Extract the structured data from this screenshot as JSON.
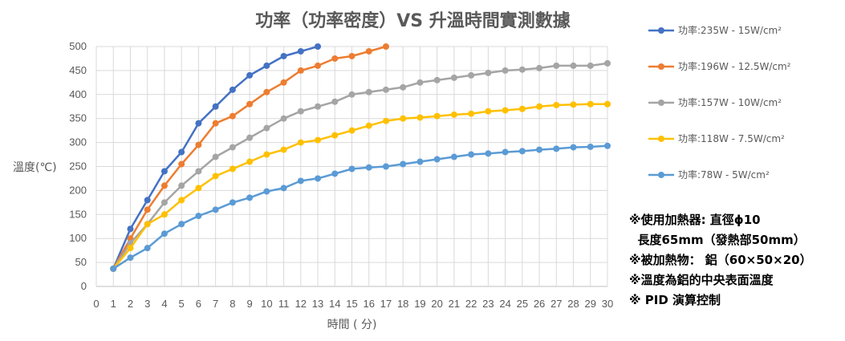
{
  "chart_data": {
    "type": "line",
    "title": "功率（功率密度）VS 升溫時間實測數據",
    "xlabel": "時間 ( 分)",
    "ylabel": "溫度(℃)",
    "xlim": [
      0,
      30
    ],
    "ylim": [
      0,
      500
    ],
    "x_ticks": [
      "0",
      "1",
      "2",
      "3",
      "4",
      "5",
      "6",
      "7",
      "8",
      "9",
      "10",
      "11",
      "12",
      "13",
      "14",
      "15",
      "16",
      "17",
      "18",
      "19",
      "20",
      "21",
      "22",
      "23",
      "24",
      "25",
      "26",
      "27",
      "28",
      "29",
      "30"
    ],
    "y_ticks": [
      "0",
      "50",
      "100",
      "150",
      "200",
      "250",
      "300",
      "350",
      "400",
      "450",
      "500"
    ],
    "grid": true,
    "legend_position": "right",
    "series": [
      {
        "name": "功率:235W - 15W/cm²",
        "color": "#4472C4",
        "x": [
          1,
          2,
          3,
          4,
          5,
          6,
          7,
          8,
          9,
          10,
          11,
          12,
          13
        ],
        "y": [
          37,
          120,
          180,
          240,
          280,
          340,
          375,
          410,
          440,
          460,
          480,
          490,
          500
        ]
      },
      {
        "name": "功率:196W - 12.5W/cm²",
        "color": "#ED7D31",
        "x": [
          1,
          2,
          3,
          4,
          5,
          6,
          7,
          8,
          9,
          10,
          11,
          12,
          13,
          14,
          15,
          16,
          17
        ],
        "y": [
          37,
          100,
          160,
          210,
          255,
          295,
          340,
          355,
          380,
          405,
          425,
          450,
          460,
          475,
          480,
          490,
          500
        ]
      },
      {
        "name": "功率:157W - 10W/cm²",
        "color": "#A5A5A5",
        "x": [
          1,
          2,
          3,
          4,
          5,
          6,
          7,
          8,
          9,
          10,
          11,
          12,
          13,
          14,
          15,
          16,
          17,
          18,
          19,
          20,
          21,
          22,
          23,
          24,
          25,
          26,
          27,
          28,
          29,
          30
        ],
        "y": [
          37,
          90,
          130,
          175,
          210,
          240,
          270,
          290,
          310,
          330,
          350,
          365,
          375,
          385,
          400,
          405,
          410,
          415,
          425,
          430,
          435,
          440,
          445,
          450,
          452,
          455,
          460,
          460,
          460,
          465
        ]
      },
      {
        "name": "功率:118W - 7.5W/cm²",
        "color": "#FFC000",
        "x": [
          1,
          2,
          3,
          4,
          5,
          6,
          7,
          8,
          9,
          10,
          11,
          12,
          13,
          14,
          15,
          16,
          17,
          18,
          19,
          20,
          21,
          22,
          23,
          24,
          25,
          26,
          27,
          28,
          29,
          30
        ],
        "y": [
          37,
          80,
          130,
          150,
          180,
          205,
          230,
          245,
          260,
          275,
          285,
          300,
          305,
          315,
          325,
          335,
          345,
          350,
          352,
          355,
          358,
          360,
          365,
          367,
          370,
          375,
          378,
          379,
          380,
          380
        ]
      },
      {
        "name": "功率:78W - 5W/cm²",
        "color": "#5B9BD5",
        "x": [
          1,
          2,
          3,
          4,
          5,
          6,
          7,
          8,
          9,
          10,
          11,
          12,
          13,
          14,
          15,
          16,
          17,
          18,
          19,
          20,
          21,
          22,
          23,
          24,
          25,
          26,
          27,
          28,
          29,
          30
        ],
        "y": [
          37,
          60,
          80,
          110,
          130,
          147,
          160,
          175,
          185,
          198,
          205,
          220,
          225,
          235,
          245,
          248,
          250,
          255,
          260,
          265,
          270,
          275,
          277,
          280,
          282,
          285,
          287,
          290,
          291,
          293
        ]
      }
    ]
  },
  "notes": [
    "※使用加熱器: 直徑ϕ10",
    "  長度65mm（發熱部50mm）",
    "※被加熱物： 鋁（60×50×20）",
    "※溫度為鋁的中央表面溫度",
    "※ PID 演算控制"
  ]
}
